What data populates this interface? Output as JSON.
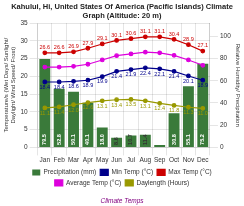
{
  "chart_data": {
    "type": "bar",
    "title": "Kahului, Hi, United States Of America (Pacific Islands) Climate Graph (Altitude: 20 m)",
    "categories": [
      "Jan",
      "Feb",
      "Mar",
      "Apr",
      "May",
      "Jun",
      "Jul",
      "Aug",
      "Sep",
      "Oct",
      "Nov",
      "Dec"
    ],
    "series": [
      {
        "name": "Precipitation (mm)",
        "type": "bar",
        "axis": "y2",
        "color": "#3a7a3a",
        "values": [
          79.5,
          52.8,
          50.1,
          40.1,
          18.0,
          8.6,
          10.7,
          11.4,
          2.2,
          30.8,
          55.1,
          75.2
        ],
        "data_labels": true,
        "value_labels": [
          "79.5",
          "52.8",
          "50.1",
          "40.1",
          "18.0",
          "8.6",
          "10.7",
          "11.4",
          null,
          "30.8",
          "55.1",
          "75.2"
        ]
      },
      {
        "name": "Min Temp (°C)",
        "type": "line",
        "color": "#00008b",
        "marker": "circle",
        "values": [
          18.4,
          18.4,
          18.6,
          18.9,
          19.9,
          21.4,
          21.9,
          22.4,
          22.1,
          21.4,
          20.1,
          18.9
        ],
        "data_labels": true
      },
      {
        "name": "Max Temp (°C)",
        "type": "line",
        "color": "#cc0000",
        "marker": "circle",
        "values": [
          26.6,
          26.6,
          26.9,
          27.9,
          29.1,
          30.1,
          30.6,
          31.1,
          31.1,
          30.4,
          28.9,
          27.1
        ],
        "data_labels": true
      },
      {
        "name": "Average Temp (°C)",
        "type": "line",
        "color": "#dd00dd",
        "marker": "circle",
        "values": [
          22.6,
          22.6,
          22.8,
          23.4,
          24.6,
          25.8,
          26.3,
          26.8,
          26.6,
          25.9,
          24.6,
          23.1
        ]
      },
      {
        "name": "Daylength (Hours)",
        "type": "line",
        "color": "#999900",
        "marker": "circle",
        "values": [
          11.1,
          11.4,
          12.0,
          12.6,
          13.1,
          13.4,
          13.5,
          13.1,
          12.4,
          11.8,
          11.3,
          11.0
        ],
        "data_labels": true,
        "value_labels": [
          "11.1",
          "11.4",
          "12.0",
          "12.6",
          "13.1",
          "13.4",
          "13.5",
          "13.1",
          "12.4",
          "11.8",
          "11.3",
          "11.0"
        ]
      }
    ],
    "ylabel": "Temperature/s (Wet Days/ Sunlight/ Daylight/ Wind Speed/ Frost)",
    "y2label": "Relative Humidity/ Precipitation",
    "ylim": [
      0,
      35
    ],
    "yticks": [
      0,
      5,
      10,
      15,
      20,
      25,
      30,
      35
    ],
    "y2lim": [
      0,
      112
    ],
    "y2ticks": [
      0,
      20,
      40,
      60,
      80,
      100
    ],
    "grid": true,
    "legend": "bottom",
    "annotations": [
      {
        "text": "Climate Temps",
        "color": "purple"
      }
    ]
  }
}
